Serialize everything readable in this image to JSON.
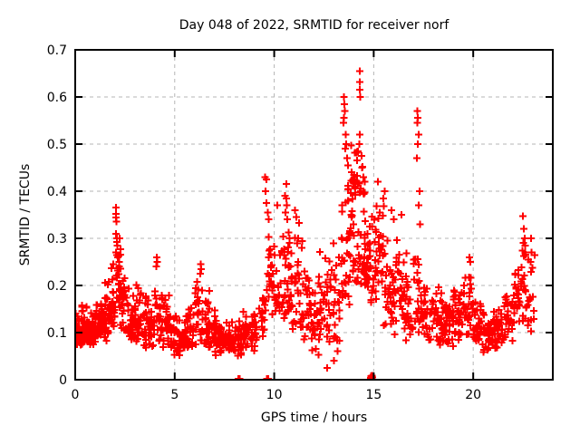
{
  "chart_data": {
    "type": "scatter",
    "title": "Day 048 of 2022, SRMTID for receiver norf",
    "xlabel": "GPS time / hours",
    "ylabel": "SRMTID / TECUs",
    "xlim": [
      0,
      24
    ],
    "ylim": [
      0,
      0.7
    ],
    "xticks": [
      0,
      5,
      10,
      15,
      20
    ],
    "xtick_labels": [
      "0",
      "5",
      "10",
      "15",
      "20"
    ],
    "yticks": [
      0,
      0.1,
      0.2,
      0.3,
      0.4,
      0.5,
      0.6,
      0.7
    ],
    "ytick_labels": [
      "0",
      "0.1",
      "0.2",
      "0.3",
      "0.4",
      "0.5",
      "0.6",
      "0.7"
    ],
    "grid": true,
    "legend": "none",
    "marker": "plus",
    "marker_color": "#ff0000",
    "grid_color": "#b5b5b5",
    "series_name": "SRMTID",
    "seed": 48,
    "density_bins": [
      [
        0.0,
        0.3,
        0.07,
        0.16,
        30
      ],
      [
        0.3,
        0.6,
        0.06,
        0.17,
        35
      ],
      [
        0.6,
        0.9,
        0.07,
        0.16,
        35
      ],
      [
        0.9,
        1.2,
        0.07,
        0.17,
        30
      ],
      [
        1.2,
        1.5,
        0.08,
        0.18,
        30
      ],
      [
        1.5,
        1.8,
        0.08,
        0.22,
        30
      ],
      [
        1.8,
        2.0,
        0.1,
        0.27,
        20
      ],
      [
        2.0,
        2.3,
        0.11,
        0.33,
        25
      ],
      [
        2.3,
        2.6,
        0.1,
        0.28,
        25
      ],
      [
        2.6,
        3.0,
        0.08,
        0.22,
        30
      ],
      [
        3.0,
        3.5,
        0.07,
        0.21,
        35
      ],
      [
        3.5,
        4.0,
        0.06,
        0.19,
        35
      ],
      [
        4.0,
        4.4,
        0.07,
        0.26,
        25
      ],
      [
        4.4,
        4.8,
        0.06,
        0.2,
        25
      ],
      [
        4.8,
        5.2,
        0.05,
        0.16,
        30
      ],
      [
        5.2,
        5.6,
        0.05,
        0.15,
        30
      ],
      [
        5.6,
        6.0,
        0.06,
        0.17,
        30
      ],
      [
        6.0,
        6.4,
        0.06,
        0.24,
        25
      ],
      [
        6.4,
        6.8,
        0.06,
        0.2,
        25
      ],
      [
        6.8,
        7.2,
        0.05,
        0.15,
        30
      ],
      [
        7.2,
        7.6,
        0.05,
        0.14,
        30
      ],
      [
        7.6,
        8.0,
        0.05,
        0.13,
        30
      ],
      [
        8.0,
        8.4,
        0.05,
        0.14,
        25
      ],
      [
        8.4,
        8.8,
        0.06,
        0.15,
        25
      ],
      [
        8.8,
        9.2,
        0.06,
        0.16,
        22
      ],
      [
        9.2,
        9.6,
        0.08,
        0.2,
        20
      ],
      [
        9.6,
        9.9,
        0.12,
        0.38,
        18
      ],
      [
        9.9,
        10.3,
        0.12,
        0.3,
        25
      ],
      [
        10.3,
        10.8,
        0.12,
        0.37,
        30
      ],
      [
        10.8,
        11.3,
        0.1,
        0.34,
        30
      ],
      [
        11.3,
        11.8,
        0.08,
        0.3,
        30
      ],
      [
        11.8,
        12.3,
        0.05,
        0.24,
        30
      ],
      [
        12.3,
        12.8,
        0.06,
        0.28,
        28
      ],
      [
        12.8,
        13.3,
        0.05,
        0.32,
        28
      ],
      [
        13.3,
        13.8,
        0.15,
        0.46,
        32
      ],
      [
        13.8,
        14.2,
        0.18,
        0.52,
        34
      ],
      [
        14.2,
        14.6,
        0.18,
        0.5,
        34
      ],
      [
        14.6,
        15.0,
        0.16,
        0.42,
        30
      ],
      [
        15.0,
        15.5,
        0.13,
        0.4,
        32
      ],
      [
        15.5,
        16.0,
        0.1,
        0.31,
        32
      ],
      [
        16.0,
        16.5,
        0.09,
        0.33,
        28
      ],
      [
        16.5,
        17.0,
        0.07,
        0.3,
        28
      ],
      [
        17.0,
        17.4,
        0.1,
        0.32,
        22
      ],
      [
        17.4,
        18.0,
        0.08,
        0.22,
        32
      ],
      [
        18.0,
        18.5,
        0.07,
        0.2,
        32
      ],
      [
        18.5,
        19.0,
        0.07,
        0.18,
        32
      ],
      [
        19.0,
        19.5,
        0.08,
        0.22,
        32
      ],
      [
        19.5,
        20.0,
        0.08,
        0.24,
        32
      ],
      [
        20.0,
        20.5,
        0.07,
        0.18,
        32
      ],
      [
        20.5,
        21.0,
        0.05,
        0.15,
        32
      ],
      [
        21.0,
        21.5,
        0.06,
        0.16,
        32
      ],
      [
        21.5,
        22.0,
        0.08,
        0.22,
        28
      ],
      [
        22.0,
        22.4,
        0.1,
        0.26,
        24
      ],
      [
        22.4,
        22.7,
        0.11,
        0.3,
        18
      ],
      [
        22.7,
        23.1,
        0.08,
        0.28,
        16
      ]
    ],
    "outlier_points": [
      [
        2.05,
        0.365
      ],
      [
        2.06,
        0.352
      ],
      [
        2.04,
        0.344
      ],
      [
        2.07,
        0.336
      ],
      [
        2.05,
        0.31
      ],
      [
        2.09,
        0.3
      ],
      [
        2.12,
        0.285
      ],
      [
        2.06,
        0.27
      ],
      [
        2.15,
        0.26
      ],
      [
        2.2,
        0.25
      ],
      [
        4.1,
        0.26
      ],
      [
        4.12,
        0.25
      ],
      [
        4.08,
        0.24
      ],
      [
        6.3,
        0.245
      ],
      [
        6.32,
        0.235
      ],
      [
        6.28,
        0.225
      ],
      [
        9.55,
        0.43
      ],
      [
        9.6,
        0.425
      ],
      [
        9.57,
        0.4
      ],
      [
        9.62,
        0.375
      ],
      [
        9.68,
        0.355
      ],
      [
        9.72,
        0.34
      ],
      [
        10.15,
        0.37
      ],
      [
        10.6,
        0.415
      ],
      [
        10.55,
        0.39
      ],
      [
        10.6,
        0.385
      ],
      [
        10.63,
        0.37
      ],
      [
        10.57,
        0.355
      ],
      [
        10.66,
        0.34
      ],
      [
        11.05,
        0.36
      ],
      [
        11.12,
        0.345
      ],
      [
        11.2,
        0.3
      ],
      [
        12.65,
        0.025
      ],
      [
        13.0,
        0.04
      ],
      [
        13.5,
        0.6
      ],
      [
        13.52,
        0.585
      ],
      [
        13.54,
        0.57
      ],
      [
        13.5,
        0.556
      ],
      [
        13.48,
        0.545
      ],
      [
        13.6,
        0.52
      ],
      [
        13.62,
        0.5
      ],
      [
        13.58,
        0.49
      ],
      [
        13.66,
        0.47
      ],
      [
        13.7,
        0.455
      ],
      [
        13.9,
        0.44
      ],
      [
        13.95,
        0.425
      ],
      [
        14.0,
        0.435
      ],
      [
        14.05,
        0.41
      ],
      [
        14.3,
        0.655
      ],
      [
        14.31,
        0.632
      ],
      [
        14.29,
        0.615
      ],
      [
        14.33,
        0.6
      ],
      [
        14.3,
        0.52
      ],
      [
        14.28,
        0.5
      ],
      [
        14.38,
        0.475
      ],
      [
        14.42,
        0.45
      ],
      [
        14.2,
        0.485
      ],
      [
        14.16,
        0.465
      ],
      [
        14.48,
        0.43
      ],
      [
        14.55,
        0.42
      ],
      [
        15.2,
        0.42
      ],
      [
        15.55,
        0.4
      ],
      [
        15.9,
        0.36
      ],
      [
        16.0,
        0.34
      ],
      [
        16.4,
        0.35
      ],
      [
        17.2,
        0.57
      ],
      [
        17.22,
        0.556
      ],
      [
        17.19,
        0.545
      ],
      [
        17.25,
        0.52
      ],
      [
        17.21,
        0.5
      ],
      [
        17.16,
        0.47
      ],
      [
        17.3,
        0.4
      ],
      [
        17.27,
        0.37
      ],
      [
        17.32,
        0.33
      ],
      [
        19.8,
        0.26
      ],
      [
        19.85,
        0.25
      ],
      [
        22.5,
        0.347
      ],
      [
        22.55,
        0.32
      ],
      [
        22.58,
        0.3
      ],
      [
        22.52,
        0.29
      ],
      [
        22.6,
        0.285
      ],
      [
        22.62,
        0.27
      ],
      [
        22.9,
        0.3
      ],
      [
        22.92,
        0.27
      ],
      [
        22.88,
        0.25
      ]
    ],
    "near_zero_points": [
      [
        8.2,
        0.002
      ],
      [
        8.26,
        0.002
      ],
      [
        9.63,
        0.002
      ],
      [
        9.7,
        0.002
      ],
      [
        14.84,
        0.004
      ],
      [
        14.86,
        0.001
      ],
      [
        14.88,
        0.006
      ],
      [
        14.9,
        0.003
      ],
      [
        14.92,
        0.0
      ],
      [
        14.94,
        0.005
      ],
      [
        14.87,
        0.008
      ],
      [
        14.91,
        0.009
      ]
    ]
  }
}
